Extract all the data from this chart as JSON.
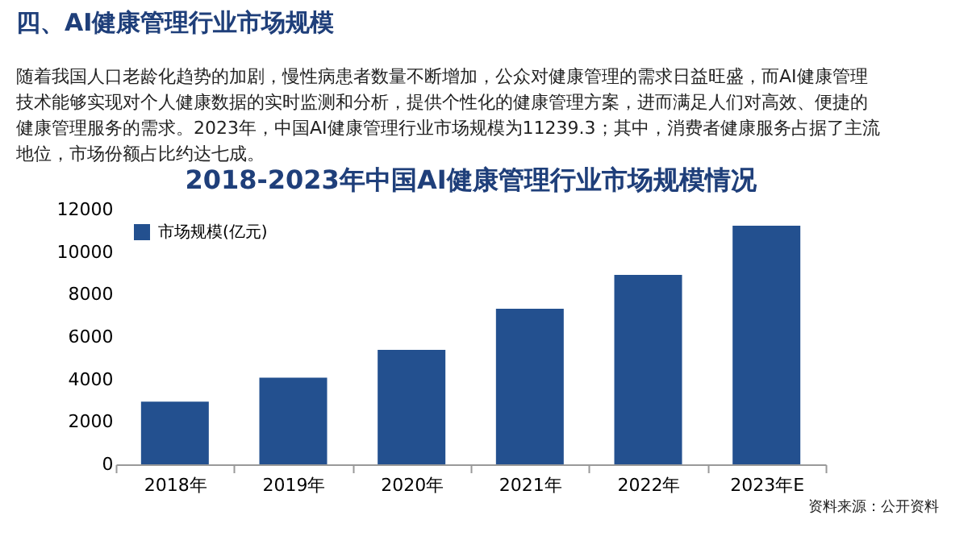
{
  "chart_data": {
    "type": "bar",
    "title": "2018-2023年中国AI健康管理行业市场规模情况",
    "annotations": [
      "四、AI健康管理行业市场规模",
      "随着我国人口老龄化趋势的加剧，慢性病患者数量不断增加，公众对健康管理的需求日益旺盛，而AI健康管理技术能够实现对个人健康数据的实时监测和分析，提供个性化的健康管理方案，进而满足人们对高效、便捷的健康管理服务的需求。2023年，中国AI健康管理行业市场规模为11239.3；其中，消费者健康服务占据了主流地位，市场份额占比约达七成。",
      "资料来源：公开资料"
    ],
    "categories": [
      "2018年",
      "2019年",
      "2020年",
      "2021年",
      "2022年",
      "2023年E"
    ],
    "series": [
      {
        "name": "市场规模(亿元)",
        "color": "#23508f",
        "values": [
          2950,
          4080,
          5390,
          7330,
          8920,
          11239.3
        ]
      }
    ],
    "ylim": [
      0,
      12000
    ],
    "yticks": [
      0,
      2000,
      4000,
      6000,
      8000,
      10000,
      12000
    ],
    "grid": false,
    "legend": "top left"
  }
}
